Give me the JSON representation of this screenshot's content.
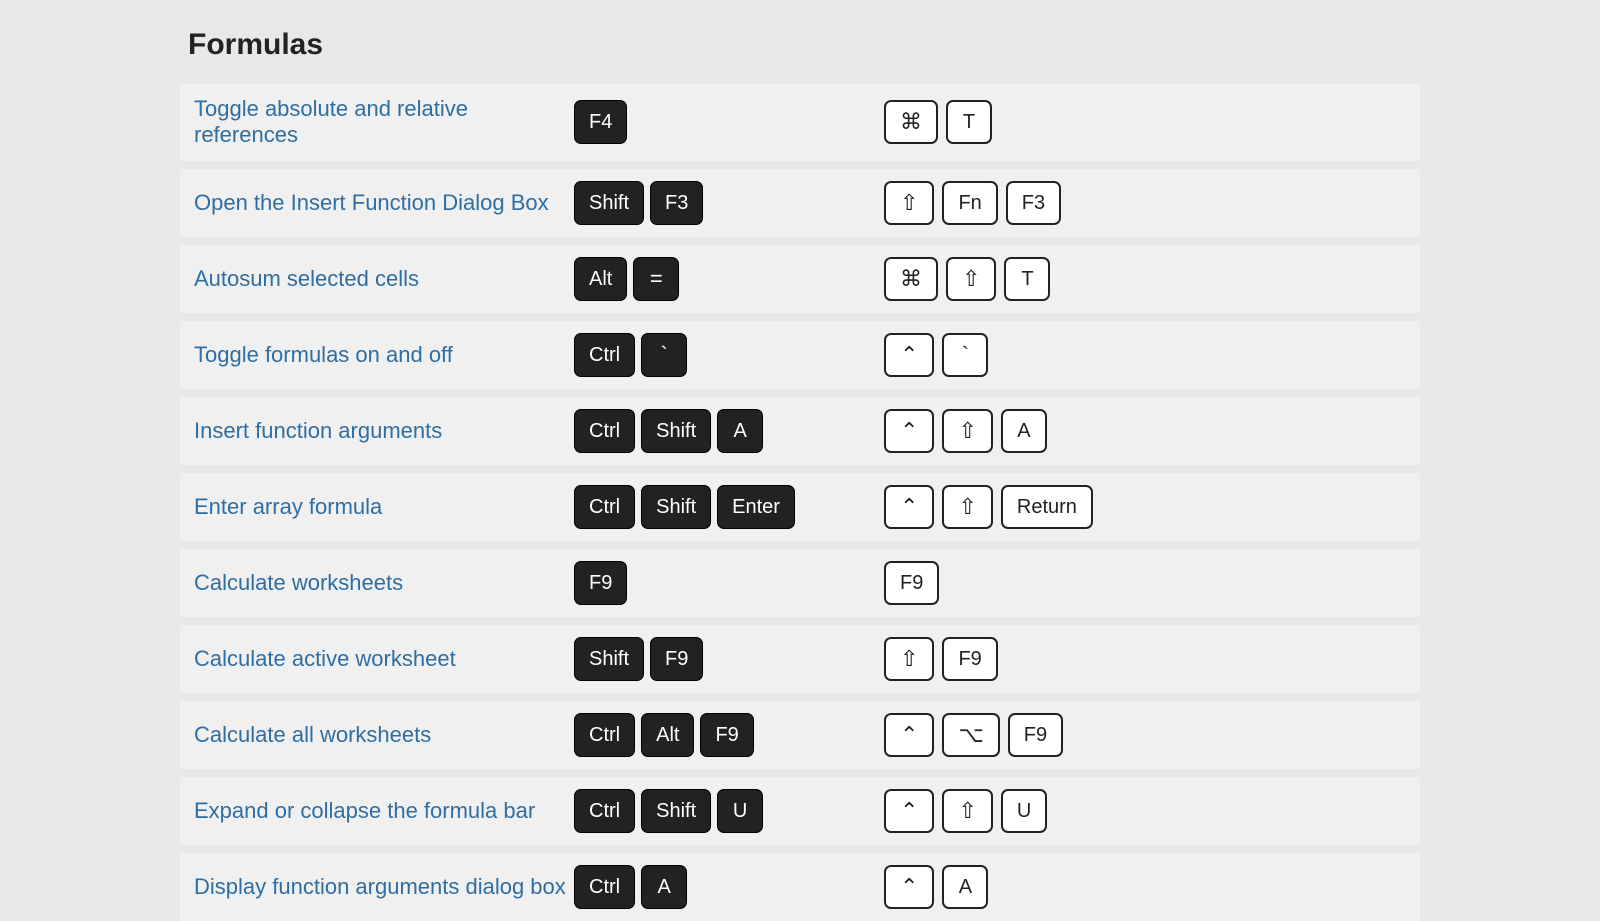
{
  "section_title": "Formulas",
  "colors": {
    "page_bg": "#e8e8e8",
    "row_bg": "#f0f0f0",
    "link_text": "#2f6ea3",
    "dark_key_bg": "#222222",
    "dark_key_text": "#ffffff",
    "light_key_bg": "#ffffff",
    "light_key_border": "#222222"
  },
  "symbols": {
    "cmd": "⌘",
    "shift": "⇧",
    "ctrl": "⌃",
    "option": "⌥",
    "backtick": "`"
  },
  "rows": [
    {
      "desc": "Toggle absolute and relative references",
      "win": [
        "F4"
      ],
      "mac": [
        "⌘",
        "T"
      ]
    },
    {
      "desc": "Open the Insert Function Dialog Box",
      "win": [
        "Shift",
        "F3"
      ],
      "mac": [
        "⇧",
        "Fn",
        "F3"
      ]
    },
    {
      "desc": "Autosum selected cells",
      "win": [
        "Alt",
        "="
      ],
      "mac": [
        "⌘",
        "⇧",
        "T"
      ]
    },
    {
      "desc": "Toggle formulas on and off",
      "win": [
        "Ctrl",
        "`"
      ],
      "mac": [
        "⌃",
        "`"
      ]
    },
    {
      "desc": "Insert function arguments",
      "win": [
        "Ctrl",
        "Shift",
        "A"
      ],
      "mac": [
        "⌃",
        "⇧",
        "A"
      ]
    },
    {
      "desc": "Enter array formula",
      "win": [
        "Ctrl",
        "Shift",
        "Enter"
      ],
      "mac": [
        "⌃",
        "⇧",
        "Return"
      ]
    },
    {
      "desc": "Calculate worksheets",
      "win": [
        "F9"
      ],
      "mac": [
        "F9"
      ]
    },
    {
      "desc": "Calculate active worksheet",
      "win": [
        "Shift",
        "F9"
      ],
      "mac": [
        "⇧",
        "F9"
      ]
    },
    {
      "desc": "Calculate all worksheets",
      "win": [
        "Ctrl",
        "Alt",
        "F9"
      ],
      "mac": [
        "⌃",
        "⌥",
        "F9"
      ]
    },
    {
      "desc": "Expand or collapse the formula bar",
      "win": [
        "Ctrl",
        "Shift",
        "U"
      ],
      "mac": [
        "⌃",
        "⇧",
        "U"
      ]
    },
    {
      "desc": "Display function arguments dialog box",
      "win": [
        "Ctrl",
        "A"
      ],
      "mac": [
        "⌃",
        "A"
      ]
    }
  ]
}
